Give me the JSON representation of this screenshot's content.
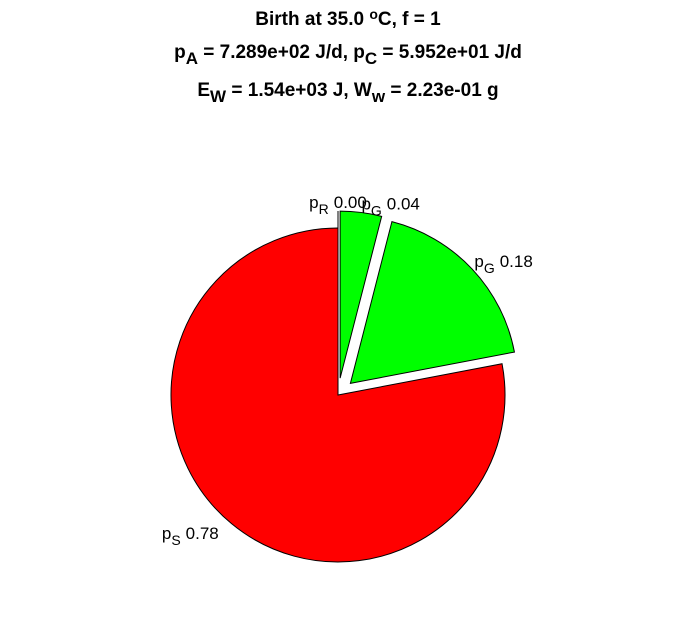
{
  "chart_data": {
    "type": "pie",
    "title_lines": [
      [
        {
          "text": "Birth at 35.0 ",
          "style": "normal"
        },
        {
          "text": "o",
          "style": "sup"
        },
        {
          "text": "C, f = 1",
          "style": "normal"
        }
      ],
      [
        {
          "text": "p",
          "style": "normal"
        },
        {
          "text": "A",
          "style": "sub"
        },
        {
          "text": " = 7.289e+02 J/d, p",
          "style": "normal"
        },
        {
          "text": "C",
          "style": "sub"
        },
        {
          "text": " = 5.952e+01 J/d",
          "style": "normal"
        }
      ],
      [
        {
          "text": "E",
          "style": "normal"
        },
        {
          "text": "W",
          "style": "sub"
        },
        {
          "text": " = 1.54e+03 J, W",
          "style": "normal"
        },
        {
          "text": "w",
          "style": "sub"
        },
        {
          "text": " = 2.23e-01 g",
          "style": "normal"
        }
      ]
    ],
    "slices": [
      {
        "name": "p",
        "sub": "S",
        "value": 0.78,
        "value_label": "0.78",
        "color": "#ff0000",
        "explode": false
      },
      {
        "name": "p",
        "sub": "G",
        "value": 0.18,
        "value_label": "0.18",
        "color": "#00ff00",
        "explode": true
      },
      {
        "name": "p",
        "sub": "G",
        "value": 0.04,
        "value_label": "0.04",
        "color": "#00ff00",
        "explode": true
      },
      {
        "name": "p",
        "sub": "R",
        "value": 0.0,
        "value_label": "0.00",
        "color": "#000000",
        "explode": true
      }
    ]
  }
}
